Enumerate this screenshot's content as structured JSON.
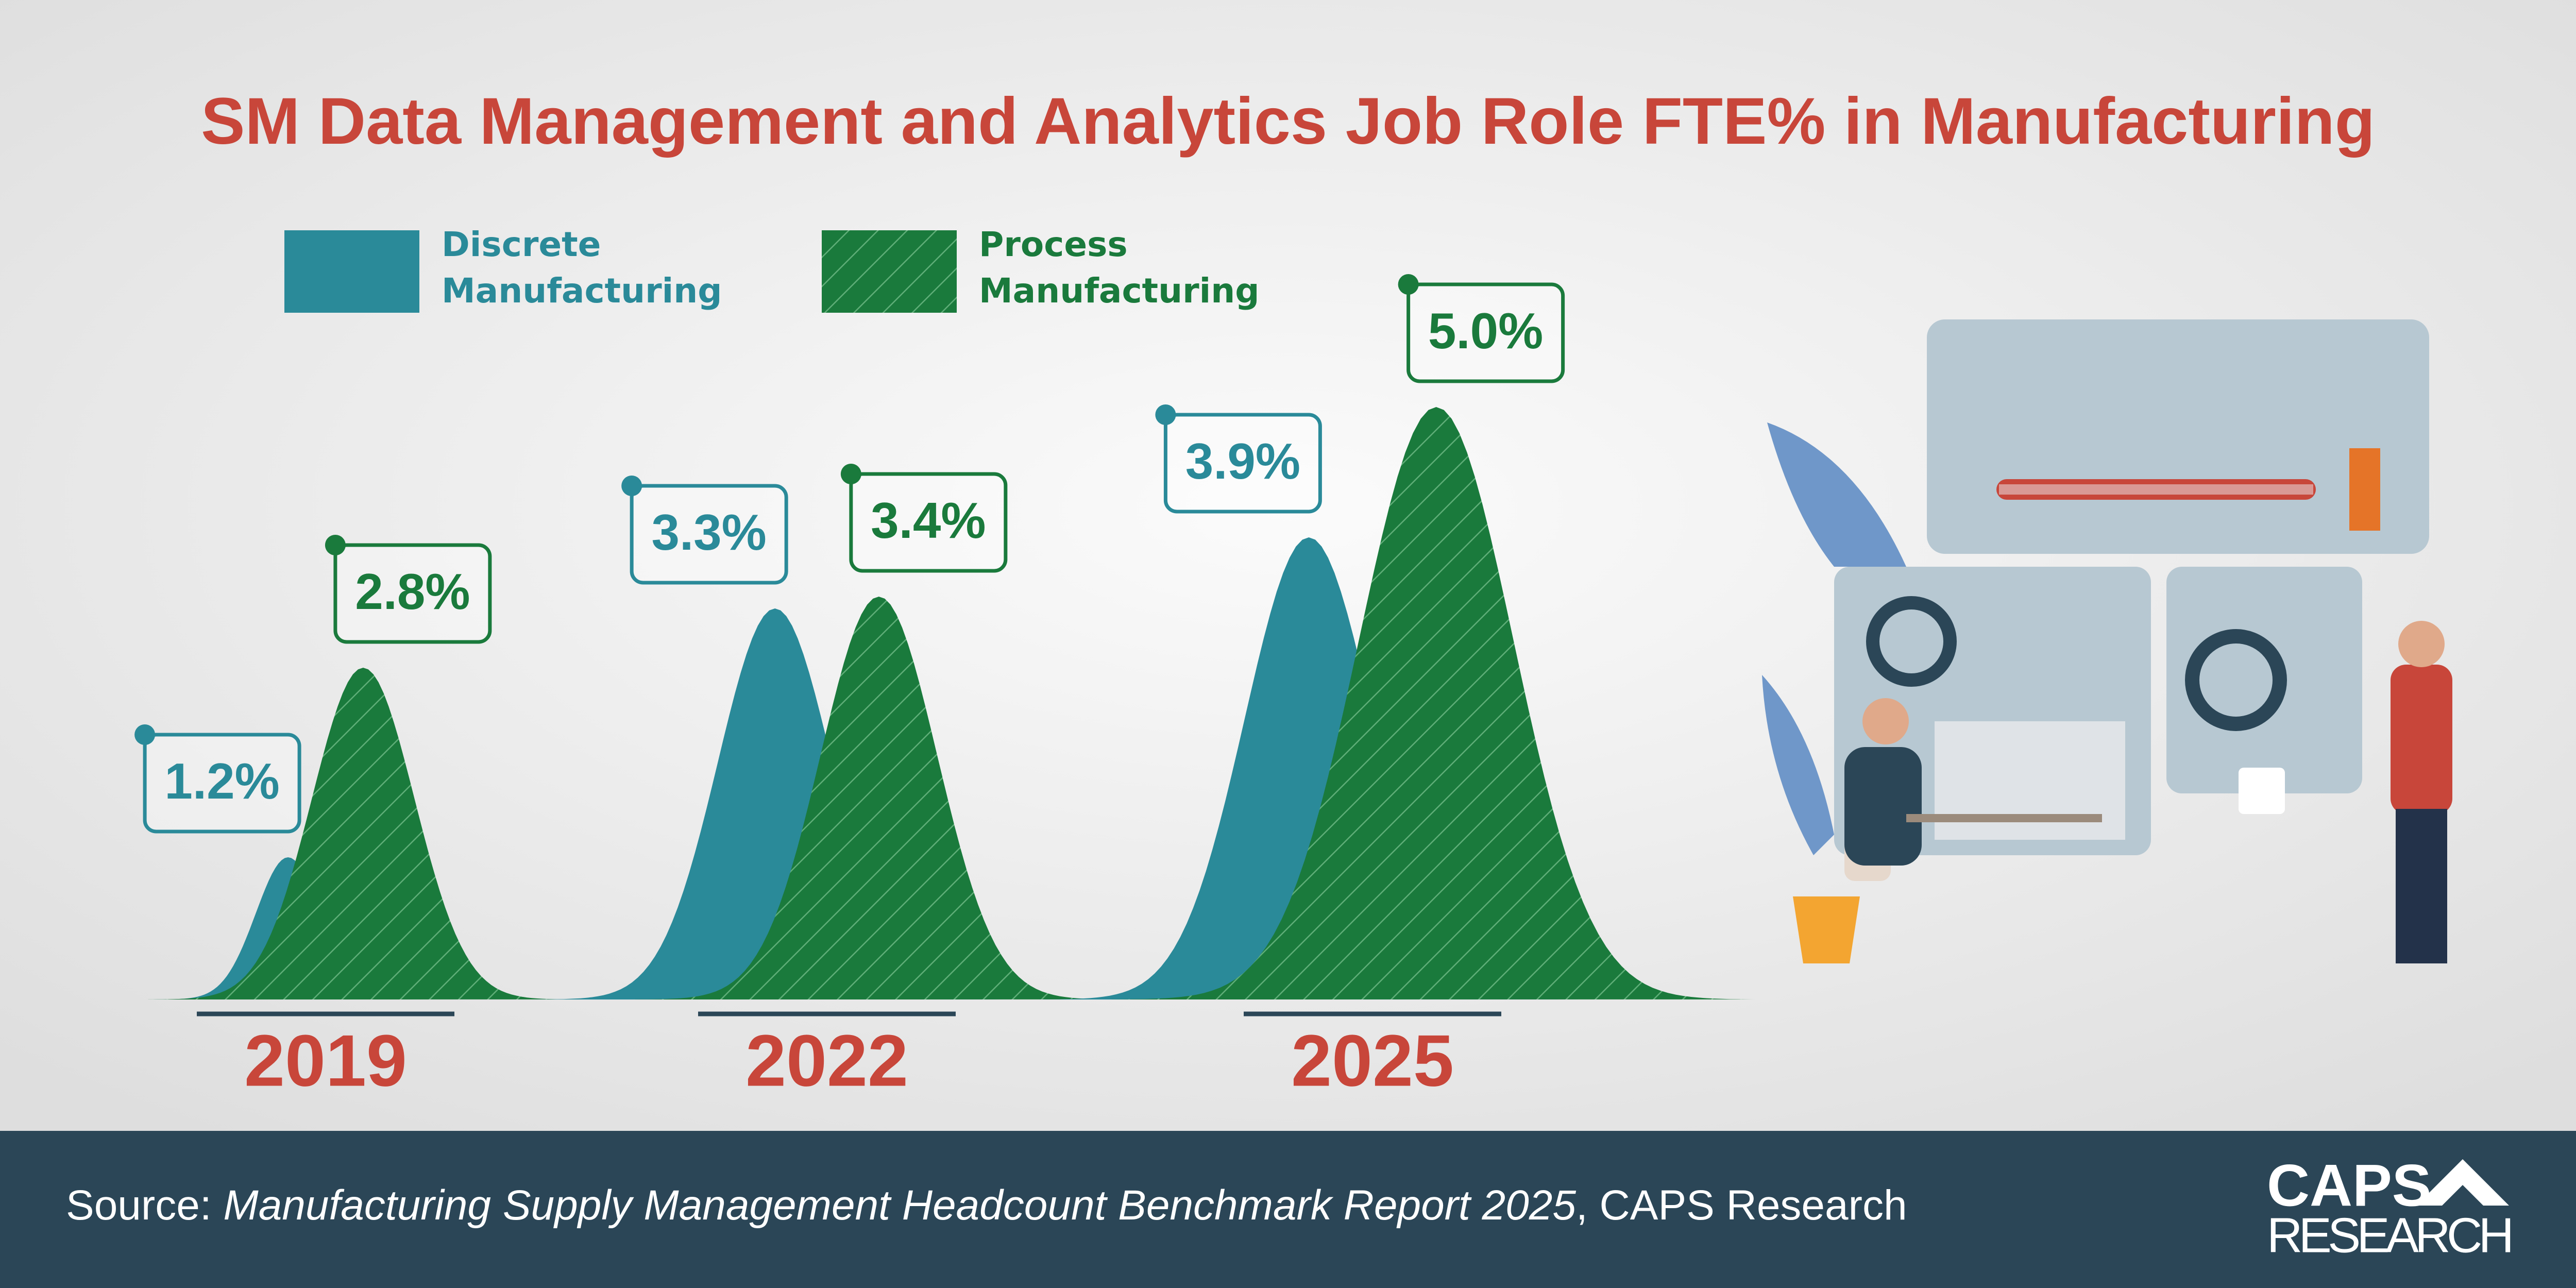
{
  "chart_data": {
    "type": "peak",
    "title": "SM Data Management and Analytics Job Role FTE% in Manufacturing",
    "categories": [
      "2019",
      "2022",
      "2025"
    ],
    "series": [
      {
        "name": "Discrete Manufacturing",
        "color": "#2a8a99",
        "values": [
          1.2,
          3.3,
          3.9
        ],
        "value_labels": [
          "1.2%",
          "3.3%",
          "3.9%"
        ]
      },
      {
        "name": "Process Manufacturing",
        "color": "#1a7a3c",
        "values": [
          2.8,
          3.4,
          5.0
        ],
        "value_labels": [
          "2.8%",
          "3.4%",
          "5.0%"
        ]
      }
    ]
  },
  "source": {
    "label": "Source:",
    "title": "Manufacturing Supply Management Headcount Benchmark Report 2025",
    "suffix": ", CAPS Research"
  },
  "logo": {
    "line1": "CAPS",
    "line2": "RESEARCH"
  }
}
